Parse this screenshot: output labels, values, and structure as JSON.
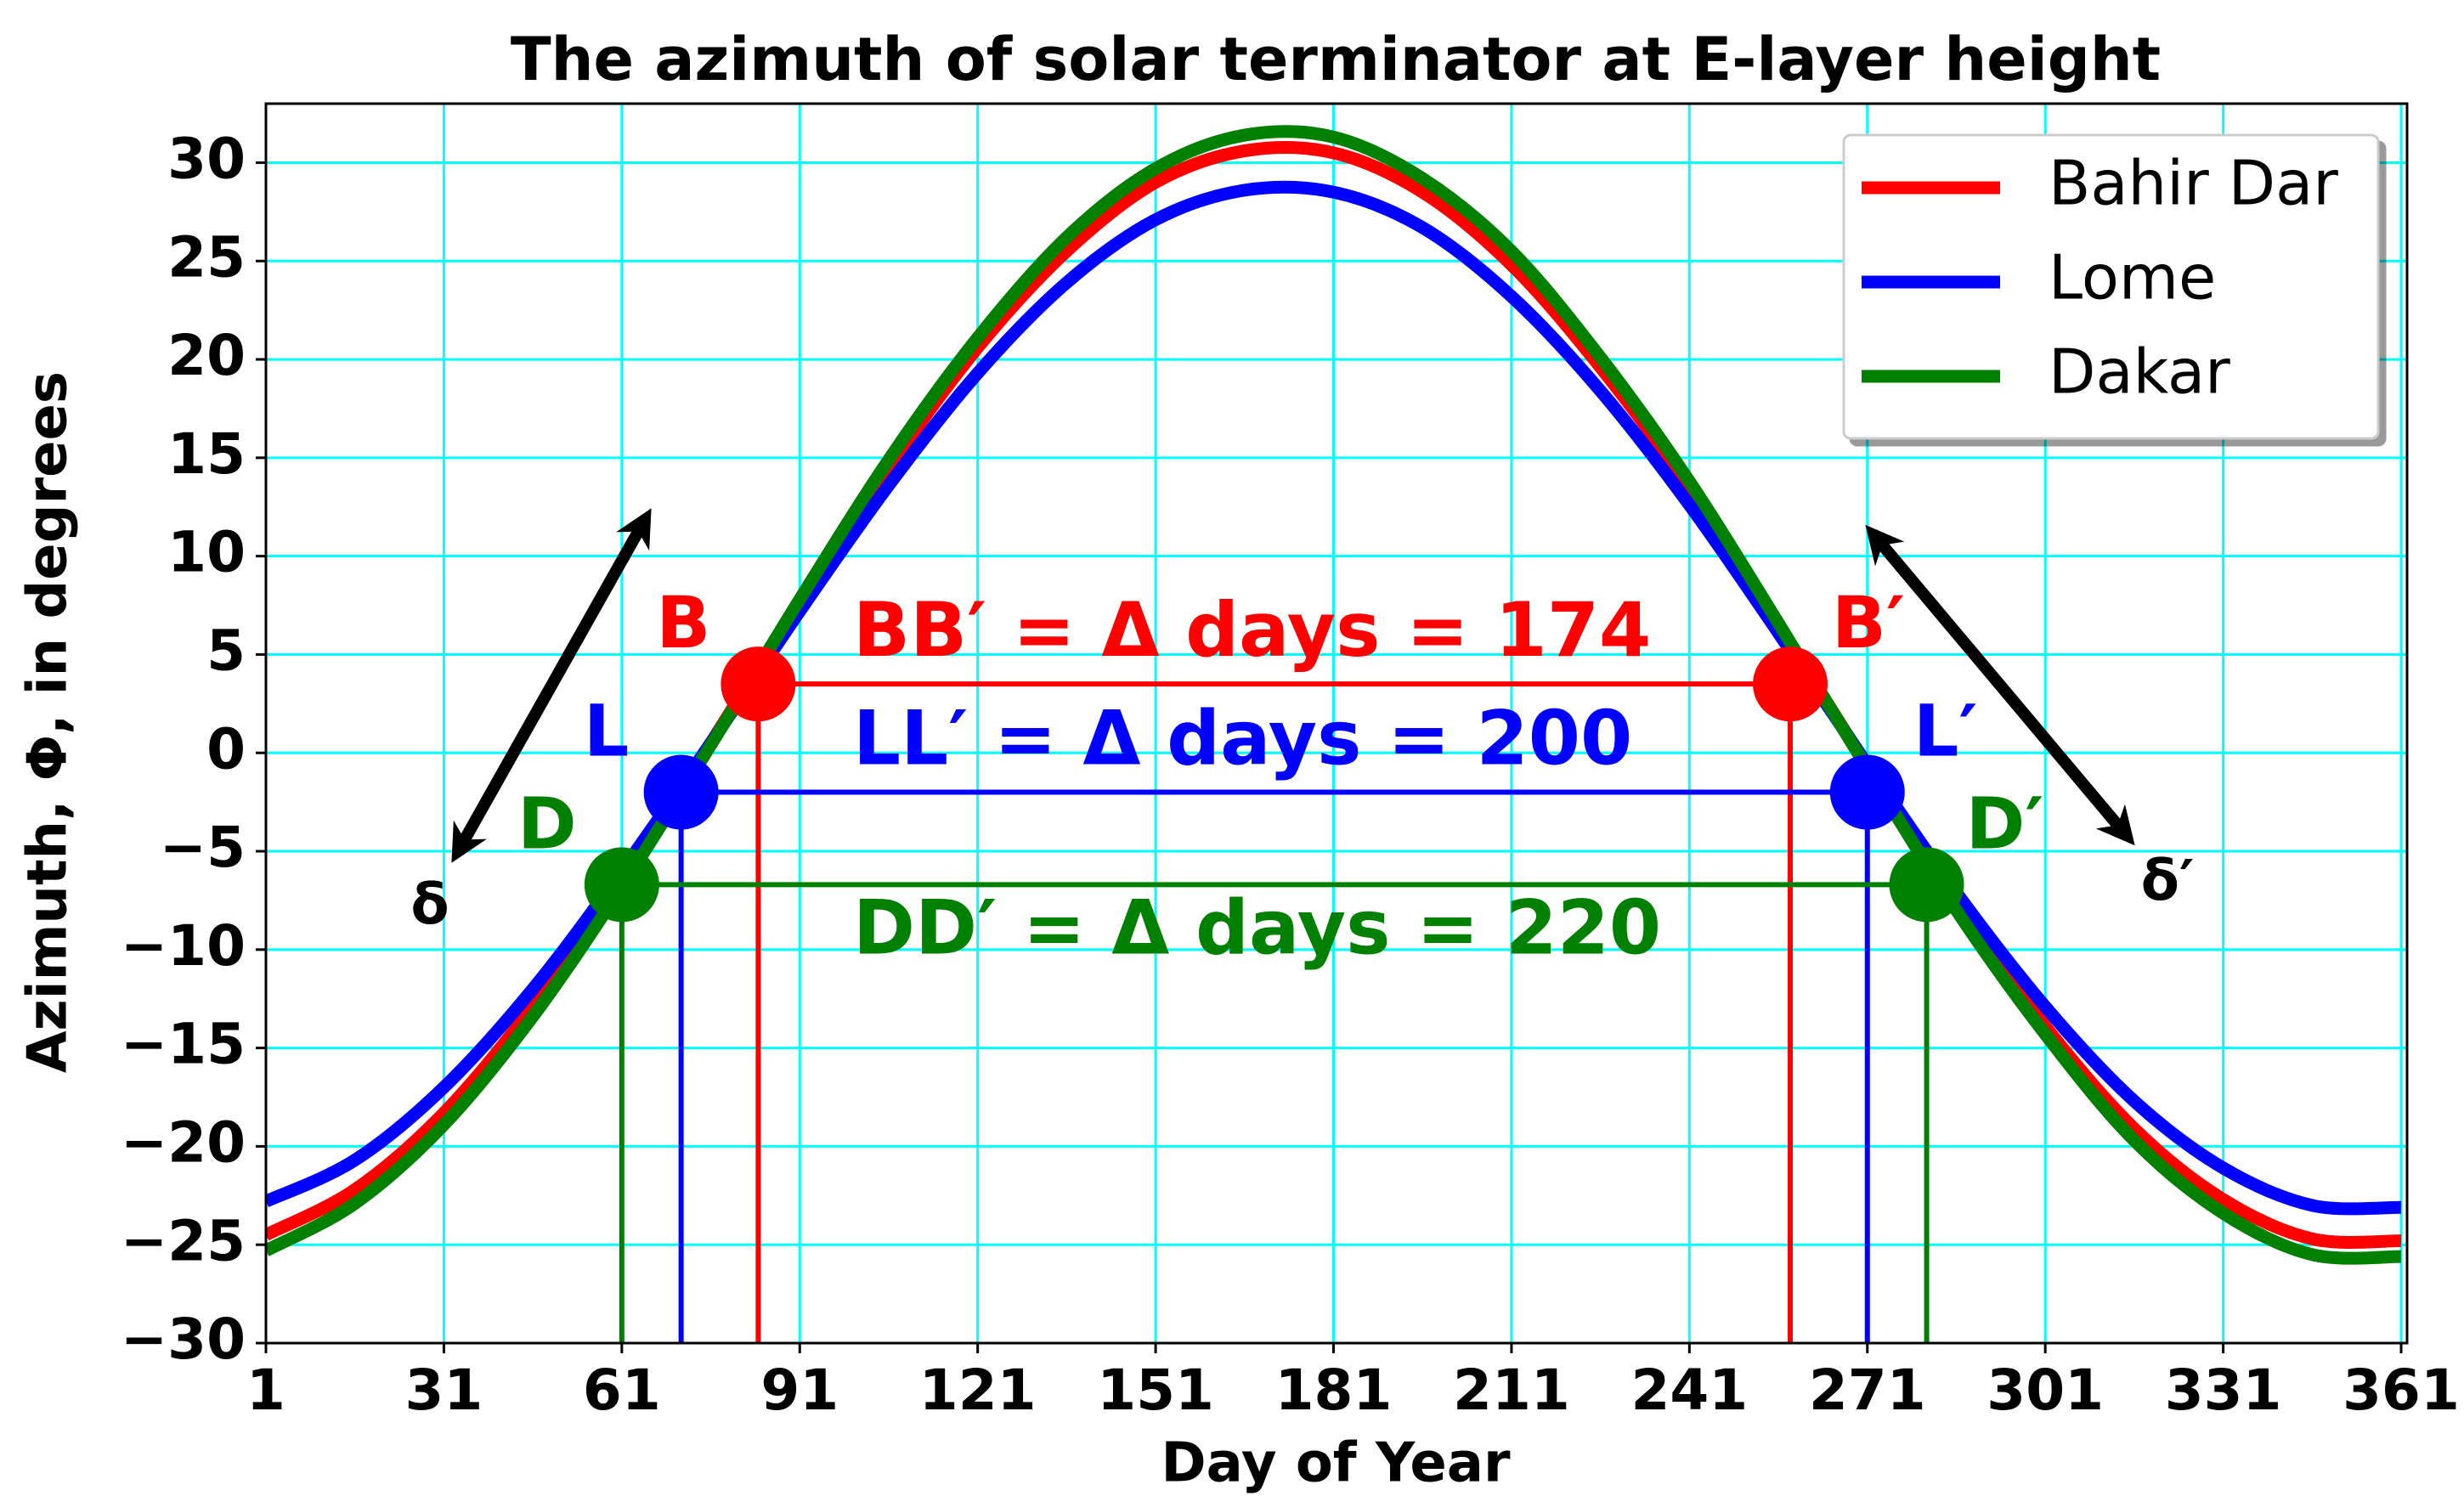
{
  "chart_data": {
    "type": "line",
    "title": "The azimuth of solar terminator at E-layer height",
    "x_label": "Day of Year",
    "y_label": "Azimuth, Φ,  in degrees",
    "x": [
      1,
      16,
      31,
      46,
      61,
      76,
      91,
      106,
      121,
      136,
      151,
      166,
      181,
      196,
      211,
      226,
      241,
      256,
      271,
      286,
      301,
      316,
      331,
      346,
      361
    ],
    "series": [
      {
        "name": "Bahir Dar",
        "color": "#ff0000",
        "values": [
          -24.5,
          -22.2,
          -18.3,
          -12.9,
          -6.5,
          0.5,
          7.7,
          14.5,
          20.6,
          25.5,
          29.0,
          30.6,
          30.5,
          28.5,
          24.8,
          19.6,
          13.5,
          6.5,
          -0.7,
          -7.7,
          -13.9,
          -19.1,
          -22.7,
          -24.7,
          -24.8
        ]
      },
      {
        "name": "Lome",
        "color": "#0000ff",
        "values": [
          -22.8,
          -20.7,
          -17.0,
          -12.0,
          -6.0,
          0.5,
          7.2,
          13.6,
          19.3,
          23.9,
          27.1,
          28.6,
          28.5,
          26.7,
          23.2,
          18.4,
          12.6,
          6.1,
          -0.6,
          -7.1,
          -12.9,
          -17.7,
          -21.1,
          -23.0,
          -23.1
        ]
      },
      {
        "name": "Dakar",
        "color": "#008000",
        "values": [
          -25.3,
          -22.9,
          -18.9,
          -13.4,
          -6.8,
          0.4,
          7.8,
          14.9,
          21.1,
          26.2,
          29.7,
          31.4,
          31.3,
          29.2,
          25.5,
          20.1,
          13.8,
          6.6,
          -0.8,
          -8.0,
          -14.3,
          -19.7,
          -23.4,
          -25.5,
          -25.6
        ]
      }
    ],
    "pairs": [
      {
        "color": "#ff0000",
        "label": "BB′ = Δ days = 174",
        "start": {
          "label": "B",
          "x": 84,
          "y": 3.5
        },
        "end": {
          "label": "B′",
          "x": 258,
          "y": 3.5
        }
      },
      {
        "color": "#0000ff",
        "label": "LL′ = Δ days = 200",
        "start": {
          "label": "L",
          "x": 71,
          "y": -2
        },
        "end": {
          "label": "L′",
          "x": 271,
          "y": -2
        }
      },
      {
        "color": "#008000",
        "label": "DD′ = Δ days = 220",
        "start": {
          "label": "D",
          "x": 61,
          "y": -6.7
        },
        "end": {
          "label": "D′",
          "x": 281,
          "y": -6.7
        }
      }
    ],
    "arrows": [
      {
        "label": "δ"
      },
      {
        "label": "δ′"
      }
    ],
    "xlim": [
      1,
      362
    ],
    "ylim": [
      -30,
      33
    ],
    "xticks": [
      1,
      31,
      61,
      91,
      121,
      151,
      181,
      211,
      241,
      271,
      301,
      331,
      361
    ],
    "yticks": [
      {
        "value": -30,
        "label": "−30"
      },
      {
        "value": -25,
        "label": "−25"
      },
      {
        "value": -20,
        "label": "−20"
      },
      {
        "value": -15,
        "label": "−15"
      },
      {
        "value": -10,
        "label": "−10"
      },
      {
        "value": -5,
        "label": "−5"
      },
      0,
      5,
      10,
      15,
      20,
      25,
      30
    ],
    "grid": true,
    "grid_color": "#00ffff",
    "legend": "upper right"
  }
}
